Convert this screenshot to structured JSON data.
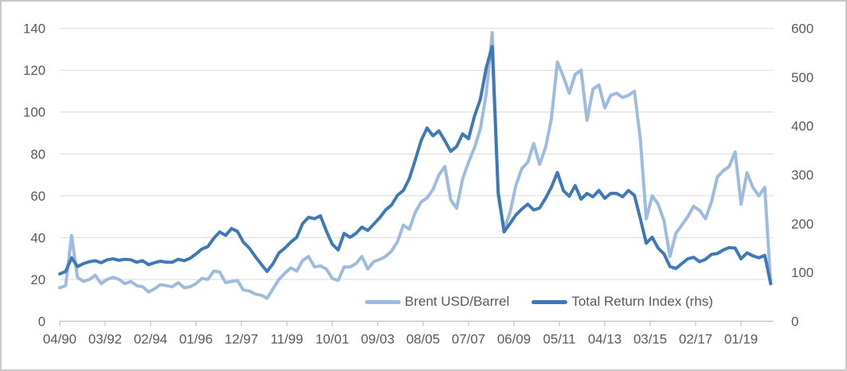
{
  "chart_data": {
    "type": "line",
    "title": "",
    "grid": "horizontal",
    "sampling_note": "series values estimated from plot at quarterly resolution (Apr/Jul/Oct/Jan), Apr-1990 through Apr-2020",
    "x_axis": {
      "tick_labels": [
        "04/90",
        "03/92",
        "02/94",
        "01/96",
        "12/97",
        "11/99",
        "10/01",
        "09/03",
        "08/05",
        "07/07",
        "06/09",
        "05/11",
        "04/13",
        "03/15",
        "02/17",
        "01/19"
      ],
      "months_between_ticks": 23
    },
    "left_axis": {
      "min": 0,
      "max": 140,
      "tick_step": 20,
      "tick_labels": [
        "0",
        "20",
        "40",
        "60",
        "80",
        "100",
        "120",
        "140"
      ]
    },
    "right_axis": {
      "min": 0,
      "max": 600,
      "tick_step": 100,
      "tick_labels": [
        "0",
        "100",
        "200",
        "300",
        "400",
        "500",
        "600"
      ]
    },
    "legend": {
      "position": "inside-bottom",
      "entries": [
        "Brent USD/Barrel",
        "Total Return Index (rhs)"
      ]
    },
    "series": [
      {
        "name": "Brent USD/Barrel",
        "axis": "left",
        "color": "#9dbadf",
        "values": [
          16,
          17,
          41,
          21,
          19,
          20,
          22,
          18,
          20,
          21,
          20,
          18,
          19,
          17,
          16.5,
          14,
          15.5,
          17.5,
          17,
          16.5,
          18.5,
          16,
          16.5,
          18,
          20.5,
          20,
          24,
          23.5,
          18.5,
          19,
          19.5,
          15,
          14.5,
          13,
          12.5,
          11,
          15.5,
          20,
          23,
          25.5,
          24,
          29,
          31,
          26,
          26.5,
          25,
          20.5,
          19.5,
          26,
          26,
          27.5,
          31,
          25,
          28.5,
          29.5,
          31,
          33.5,
          38,
          46,
          44,
          52,
          57,
          59,
          63,
          70,
          74,
          58,
          54,
          68,
          76,
          83,
          92,
          109,
          138,
          60,
          44,
          52,
          65,
          73,
          76,
          85,
          75,
          83,
          97,
          124,
          117,
          109,
          118,
          120,
          96,
          111,
          113,
          102,
          108,
          109,
          107,
          108,
          110,
          87,
          49,
          60,
          56,
          48,
          31,
          42,
          46,
          50,
          55,
          53,
          49,
          57,
          69,
          72,
          74,
          81,
          56,
          71,
          64,
          60,
          64,
          18
        ]
      },
      {
        "name": "Total Return Index (rhs)",
        "axis": "right",
        "color": "#3e79b7",
        "values": [
          97,
          102,
          130,
          112,
          118,
          122,
          124,
          120,
          126,
          128,
          125,
          127,
          126,
          121,
          124,
          116,
          120,
          123,
          121,
          121,
          127,
          124,
          129,
          138,
          148,
          153,
          170,
          183,
          176,
          190,
          184,
          162,
          150,
          133,
          117,
          102,
          118,
          140,
          150,
          162,
          172,
          200,
          213,
          210,
          216,
          185,
          158,
          146,
          180,
          172,
          180,
          193,
          186,
          199,
          212,
          228,
          238,
          258,
          268,
          292,
          330,
          370,
          396,
          380,
          390,
          370,
          348,
          358,
          384,
          374,
          420,
          455,
          520,
          563,
          265,
          183,
          200,
          218,
          230,
          240,
          228,
          232,
          252,
          275,
          305,
          268,
          256,
          278,
          250,
          262,
          255,
          268,
          252,
          262,
          262,
          255,
          268,
          258,
          210,
          160,
          172,
          150,
          138,
          112,
          108,
          118,
          128,
          131,
          122,
          127,
          137,
          139,
          146,
          151,
          150,
          128,
          140,
          134,
          130,
          135,
          77
        ]
      }
    ],
    "colors": {
      "grid": "#d9d9d9",
      "axis": "#bfbfbf",
      "text": "#595959",
      "frame": "#c8c8c8",
      "background": "#ffffff"
    }
  }
}
